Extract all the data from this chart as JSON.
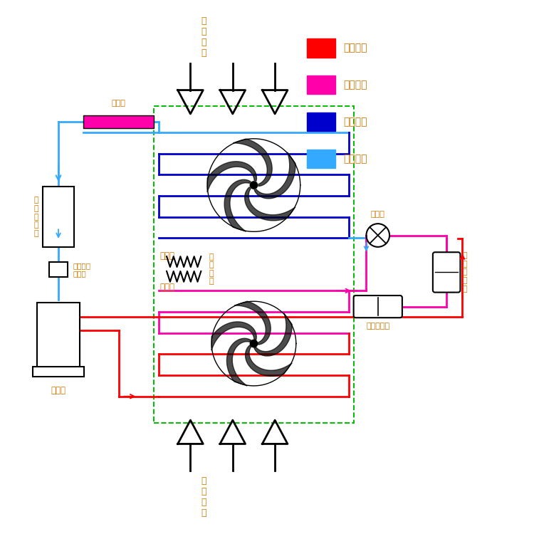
{
  "bg": "#ffffff",
  "red": "#ff0000",
  "pink": "#ff00aa",
  "dblue": "#0000cc",
  "lblue": "#33aaff",
  "black": "#000000",
  "green": "#00bb00",
  "tc": "#cc7700",
  "legend": [
    {
      "label": "高压气态",
      "color": "#ff0000"
    },
    {
      "label": "高压液态",
      "color": "#ff00aa"
    },
    {
      "label": "低压液态",
      "color": "#0000cc"
    },
    {
      "label": "低压气态",
      "color": "#33aaff"
    }
  ],
  "xlim": [
    0,
    10
  ],
  "ylim": [
    0,
    10
  ]
}
